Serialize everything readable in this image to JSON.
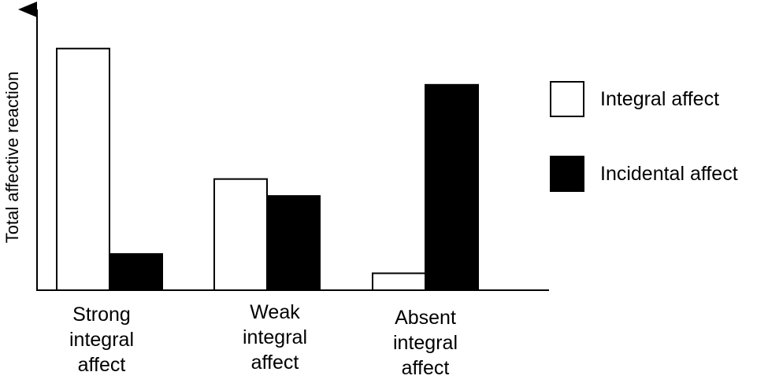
{
  "chart_data": {
    "type": "bar",
    "title": "",
    "ylabel": "Total affective reaction",
    "xlabel": "",
    "categories": [
      "Strong integral affect",
      "Weak integral affect",
      "Absent integral affect"
    ],
    "category_lines": [
      [
        "Strong",
        "integral",
        "affect"
      ],
      [
        "Weak",
        "integral",
        "affect"
      ],
      [
        "Absent",
        "integral",
        "affect"
      ]
    ],
    "series": [
      {
        "name": "Integral affect",
        "values": [
          100,
          46,
          7
        ],
        "fill": "#ffffff"
      },
      {
        "name": "Incidental affect",
        "values": [
          15,
          39,
          85
        ],
        "fill": "#000000"
      }
    ],
    "ylim": [
      0,
      110
    ],
    "y_ticks_shown": false,
    "grid": false,
    "legend_position": "right",
    "colors": {
      "axis": "#000000",
      "outline": "#000000",
      "background": "#ffffff"
    }
  }
}
